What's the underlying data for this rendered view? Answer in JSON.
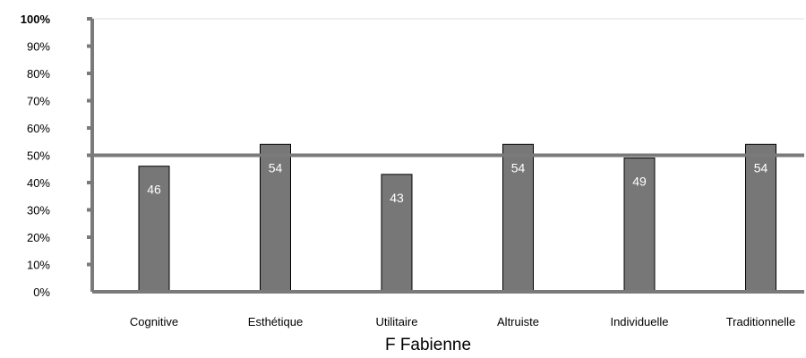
{
  "chart_data": {
    "type": "bar",
    "categories": [
      "Cognitive",
      "Esthétique",
      "Utilitaire",
      "Altruiste",
      "Individuelle",
      "Traditionnelle"
    ],
    "values": [
      46,
      54,
      43,
      54,
      49,
      54
    ],
    "data_labels": [
      "46",
      "54",
      "43",
      "54",
      "49",
      "54"
    ],
    "title": "",
    "xlabel": "F Fabienne",
    "ylabel": "",
    "ylim": [
      0,
      100
    ],
    "y_tick_labels": [
      "0%",
      "10%",
      "20%",
      "30%",
      "40%",
      "50%",
      "60%",
      "70%",
      "80%",
      "90%",
      "100%"
    ],
    "reference_line": 50,
    "grid": false,
    "legend": "none",
    "colors": {
      "bar_fill": "#777777",
      "bar_stroke": "#000000",
      "axis": "#7a7a7a",
      "data_label": "#ffffff",
      "top_line": "#dddddd"
    }
  }
}
